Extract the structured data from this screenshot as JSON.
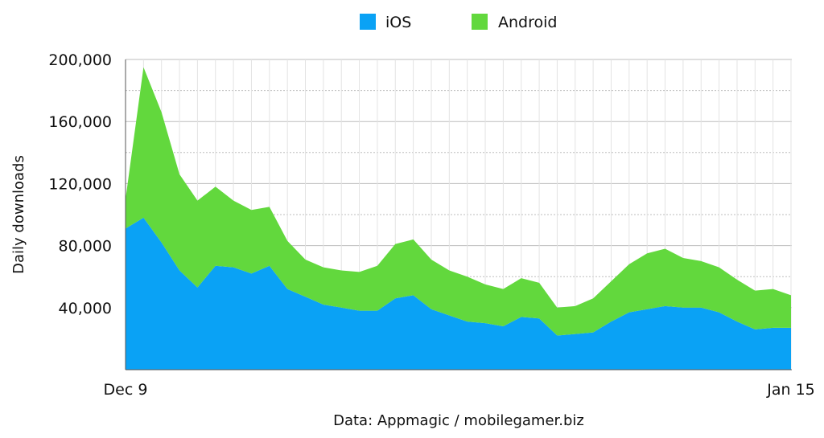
{
  "chart_data": {
    "type": "area",
    "stacked": true,
    "x_start_label": "Dec 9",
    "x_end_label": "Jan 15",
    "ylabel": "Daily downloads",
    "source": "Data: Appmagic / mobilegamer.biz",
    "ylim": [
      0,
      200000
    ],
    "yticks": [
      40000,
      80000,
      120000,
      160000,
      200000
    ],
    "ytick_labels": [
      "40,000",
      "80,000",
      "120,000",
      "160,000",
      "200,000"
    ],
    "legend_position": "top-center",
    "grid": true,
    "series": [
      {
        "name": "iOS",
        "color": "#0aa2f5",
        "values": [
          91000,
          98000,
          82000,
          64000,
          53000,
          67000,
          66000,
          62000,
          67000,
          52000,
          47000,
          42000,
          40000,
          38000,
          38000,
          46000,
          48000,
          39000,
          35000,
          31000,
          30000,
          28000,
          34000,
          33000,
          22000,
          23000,
          24000,
          31000,
          37000,
          39000,
          41000,
          40000,
          40000,
          37000,
          31000,
          26000,
          27000,
          27000
        ]
      },
      {
        "name": "Android",
        "color": "#62d83d",
        "values": [
          19000,
          97000,
          84000,
          62000,
          56000,
          51000,
          43000,
          41000,
          38000,
          31000,
          24000,
          24000,
          24000,
          25000,
          29000,
          35000,
          36000,
          32000,
          29000,
          29000,
          25000,
          24000,
          25000,
          23000,
          18000,
          18000,
          22000,
          26000,
          31000,
          36000,
          37000,
          32000,
          30000,
          29000,
          27000,
          25000,
          25000,
          21000
        ]
      }
    ]
  }
}
